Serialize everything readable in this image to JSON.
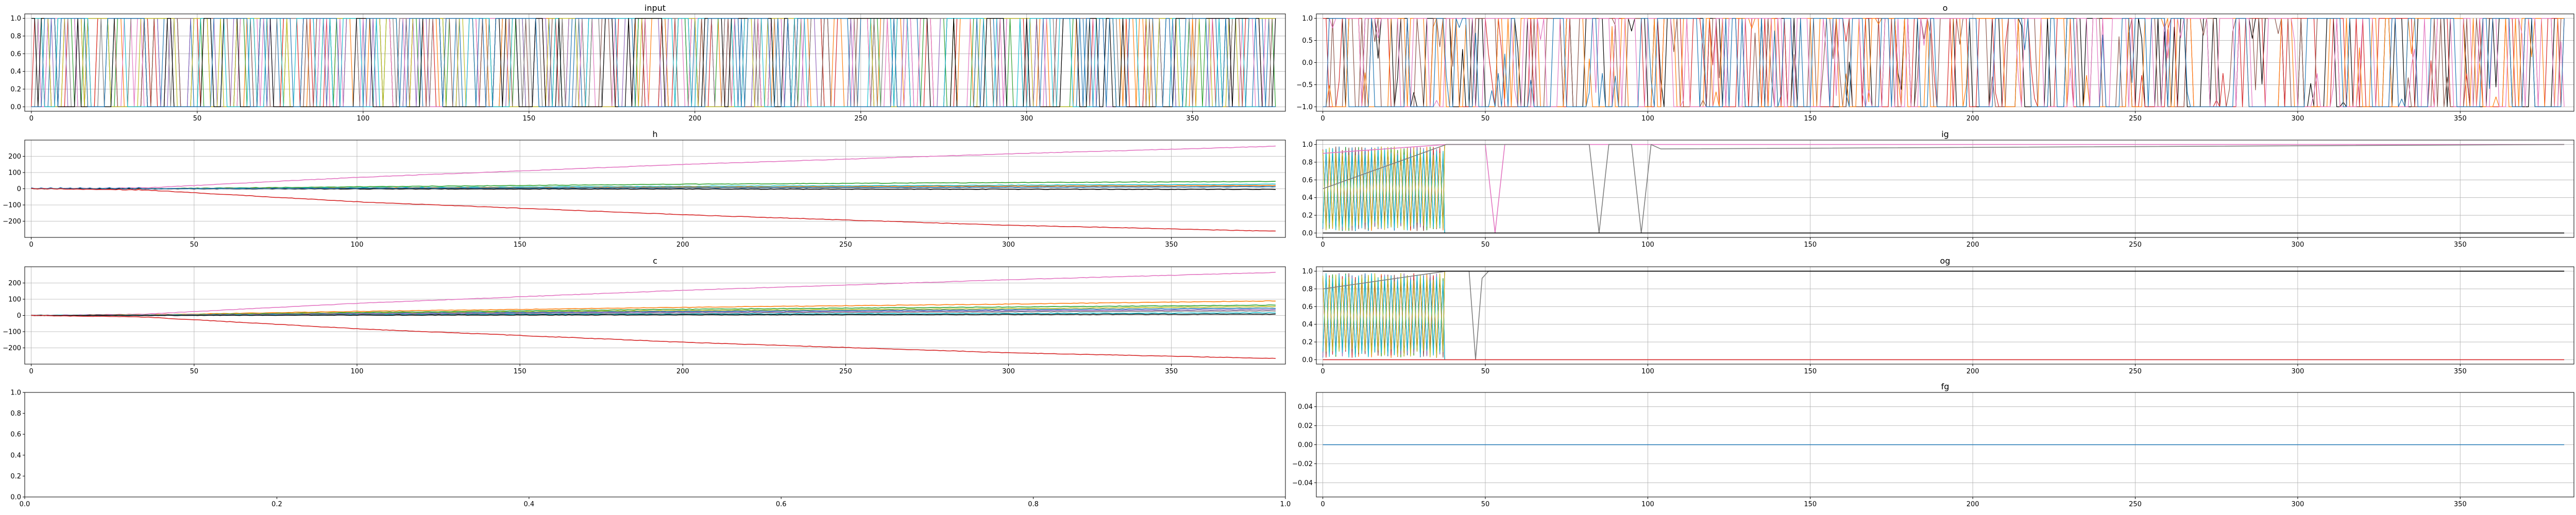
{
  "figure": {
    "background": "#ffffff"
  },
  "chart_data": [
    {
      "id": "input",
      "type": "line",
      "title": "input",
      "xlabel": "",
      "ylabel": "",
      "xlim": [
        -2,
        378
      ],
      "ylim": [
        -0.05,
        1.05
      ],
      "xticks": [
        0,
        50,
        100,
        150,
        200,
        250,
        300,
        350
      ],
      "yticks": [
        0.0,
        0.2,
        0.4,
        0.6,
        0.8,
        1.0
      ],
      "ytick_labels": [
        "0.0",
        "0.2",
        "0.4",
        "0.6",
        "0.8",
        "1.0"
      ],
      "grid": true,
      "series_pattern": "binary_switching",
      "series_count": 12,
      "x_range": [
        0,
        375
      ],
      "series_colors": [
        "#1f77b4",
        "#ff7f0e",
        "#2ca02c",
        "#d62728",
        "#9467bd",
        "#8c564b",
        "#e377c2",
        "#7f7f7f",
        "#bcbd22",
        "#17becf",
        "#000000",
        "#1f77b4"
      ]
    },
    {
      "id": "o",
      "type": "line",
      "title": "o",
      "xlabel": "",
      "ylabel": "",
      "xlim": [
        -2,
        385
      ],
      "ylim": [
        -1.1,
        1.1
      ],
      "xticks": [
        0,
        50,
        100,
        150,
        200,
        250,
        300,
        350
      ],
      "yticks": [
        -1.0,
        -0.5,
        0.0,
        0.5,
        1.0
      ],
      "ytick_labels": [
        "−1.0",
        "−0.5",
        "0.0",
        "0.5",
        "1.0"
      ],
      "grid": true,
      "series_pattern": "bipolar_switching",
      "series_count": 6,
      "x_range": [
        0,
        382
      ],
      "series_colors": [
        "#000000",
        "#d62728",
        "#8c564b",
        "#ff7f0e",
        "#e377c2",
        "#1f77b4"
      ]
    },
    {
      "id": "h",
      "type": "line",
      "title": "h",
      "xlabel": "",
      "ylabel": "",
      "xlim": [
        -2,
        385
      ],
      "ylim": [
        -300,
        300
      ],
      "xticks": [
        0,
        50,
        100,
        150,
        200,
        250,
        300,
        350
      ],
      "yticks": [
        -200,
        -100,
        0,
        100,
        200
      ],
      "ytick_labels": [
        "−200",
        "−100",
        "0",
        "100",
        "200"
      ],
      "grid": true,
      "series": [
        {
          "color": "#e377c2",
          "x": [
            0,
            35,
            100,
            200,
            300,
            382
          ],
          "y": [
            0,
            5,
            70,
            150,
            215,
            262
          ]
        },
        {
          "color": "#2ca02c",
          "x": [
            0,
            35,
            100,
            200,
            300,
            382
          ],
          "y": [
            0,
            0,
            12,
            28,
            38,
            45
          ]
        },
        {
          "color": "#17becf",
          "x": [
            0,
            35,
            100,
            200,
            300,
            382
          ],
          "y": [
            0,
            0,
            6,
            15,
            22,
            28
          ]
        },
        {
          "color": "#ff7f0e",
          "x": [
            0,
            35,
            100,
            200,
            300,
            382
          ],
          "y": [
            0,
            0,
            4,
            10,
            16,
            20
          ]
        },
        {
          "color": "#7f7f7f",
          "x": [
            0,
            35,
            100,
            200,
            300,
            382
          ],
          "y": [
            0,
            0,
            2,
            6,
            10,
            14
          ]
        },
        {
          "color": "#000000",
          "x": [
            0,
            35,
            100,
            200,
            300,
            382
          ],
          "y": [
            0,
            0,
            -1,
            -2,
            -3,
            -4
          ]
        },
        {
          "color": "#1f77b4",
          "x": [
            0,
            35,
            100,
            200,
            300,
            382
          ],
          "y": [
            0,
            0,
            3,
            6,
            9,
            12
          ]
        },
        {
          "color": "#d62728",
          "x": [
            0,
            35,
            100,
            200,
            300,
            382
          ],
          "y": [
            0,
            -8,
            -80,
            -160,
            -225,
            -262
          ]
        }
      ]
    },
    {
      "id": "ig",
      "type": "line",
      "title": "ig",
      "xlabel": "",
      "ylabel": "",
      "xlim": [
        -2,
        385
      ],
      "ylim": [
        -0.05,
        1.05
      ],
      "xticks": [
        0,
        50,
        100,
        150,
        200,
        250,
        300,
        350
      ],
      "yticks": [
        0.0,
        0.2,
        0.4,
        0.6,
        0.8,
        1.0
      ],
      "ytick_labels": [
        "0.0",
        "0.2",
        "0.4",
        "0.6",
        "0.8",
        "1.0"
      ],
      "grid": true,
      "series": [
        {
          "color": "#e377c2",
          "x": [
            0,
            38,
            50,
            53,
            56,
            59,
            382
          ],
          "y": [
            0.9,
            1.0,
            1.0,
            0.0,
            1.0,
            1.0,
            1.0
          ]
        },
        {
          "color": "#7f7f7f",
          "x": [
            0,
            38,
            82,
            85,
            88,
            95,
            98,
            101,
            104,
            382
          ],
          "y": [
            0.5,
            1.0,
            1.0,
            0.0,
            1.0,
            1.0,
            0.0,
            1.0,
            0.95,
            1.0
          ]
        },
        {
          "color": "#000000",
          "x": [
            0,
            38,
            40,
            382
          ],
          "y": [
            0.0,
            0.0,
            0.0,
            0.0
          ]
        }
      ],
      "oscillation": {
        "x_range": [
          0,
          37
        ],
        "colors": [
          "#1f77b4",
          "#ff7f0e",
          "#2ca02c",
          "#d62728",
          "#9467bd",
          "#8c564b",
          "#17becf",
          "#bcbd22"
        ]
      }
    },
    {
      "id": "c",
      "type": "line",
      "title": "c",
      "xlabel": "",
      "ylabel": "",
      "xlim": [
        -2,
        385
      ],
      "ylim": [
        -300,
        300
      ],
      "xticks": [
        0,
        50,
        100,
        150,
        200,
        250,
        300,
        350
      ],
      "yticks": [
        -200,
        -100,
        0,
        100,
        200
      ],
      "ytick_labels": [
        "−200",
        "−100",
        "0",
        "100",
        "200"
      ],
      "grid": true,
      "series": [
        {
          "color": "#e377c2",
          "x": [
            0,
            35,
            100,
            200,
            300,
            382
          ],
          "y": [
            0,
            8,
            75,
            155,
            220,
            265
          ]
        },
        {
          "color": "#ff7f0e",
          "x": [
            0,
            35,
            100,
            200,
            300,
            382
          ],
          "y": [
            0,
            4,
            25,
            50,
            70,
            90
          ]
        },
        {
          "color": "#2ca02c",
          "x": [
            0,
            35,
            100,
            200,
            300,
            382
          ],
          "y": [
            0,
            3,
            18,
            38,
            52,
            64
          ]
        },
        {
          "color": "#bcbd22",
          "x": [
            0,
            35,
            100,
            200,
            300,
            382
          ],
          "y": [
            0,
            3,
            14,
            30,
            42,
            55
          ]
        },
        {
          "color": "#1f77b4",
          "x": [
            0,
            35,
            100,
            200,
            300,
            382
          ],
          "y": [
            0,
            2,
            12,
            25,
            35,
            45
          ]
        },
        {
          "color": "#9467bd",
          "x": [
            0,
            35,
            100,
            200,
            300,
            382
          ],
          "y": [
            0,
            2,
            10,
            20,
            28,
            36
          ]
        },
        {
          "color": "#7f7f7f",
          "x": [
            0,
            35,
            100,
            200,
            300,
            382
          ],
          "y": [
            0,
            1,
            6,
            14,
            22,
            28
          ]
        },
        {
          "color": "#17becf",
          "x": [
            0,
            35,
            100,
            200,
            300,
            382
          ],
          "y": [
            0,
            1,
            4,
            8,
            12,
            16
          ]
        },
        {
          "color": "#000000",
          "x": [
            0,
            35,
            100,
            200,
            300,
            382
          ],
          "y": [
            0,
            0,
            2,
            4,
            6,
            8
          ]
        },
        {
          "color": "#d62728",
          "x": [
            0,
            35,
            100,
            200,
            300,
            382
          ],
          "y": [
            0,
            -10,
            -82,
            -165,
            -230,
            -265
          ]
        }
      ]
    },
    {
      "id": "og",
      "type": "line",
      "title": "og",
      "xlabel": "",
      "ylabel": "",
      "xlim": [
        -2,
        385
      ],
      "ylim": [
        -0.05,
        1.05
      ],
      "xticks": [
        0,
        50,
        100,
        150,
        200,
        250,
        300,
        350
      ],
      "yticks": [
        0.0,
        0.2,
        0.4,
        0.6,
        0.8,
        1.0
      ],
      "ytick_labels": [
        "0.0",
        "0.2",
        "0.4",
        "0.6",
        "0.8",
        "1.0"
      ],
      "grid": true,
      "series": [
        {
          "color": "#7f7f7f",
          "x": [
            0,
            38,
            45,
            47,
            49,
            51,
            382
          ],
          "y": [
            0.8,
            1.0,
            1.0,
            0.0,
            0.92,
            1.0,
            1.0
          ]
        },
        {
          "color": "#000000",
          "x": [
            0,
            38,
            382
          ],
          "y": [
            1.0,
            1.0,
            1.0
          ]
        },
        {
          "color": "#d62728",
          "x": [
            0,
            38,
            382
          ],
          "y": [
            0.0,
            0.0,
            0.0
          ]
        }
      ],
      "oscillation": {
        "x_range": [
          0,
          37
        ],
        "colors": [
          "#1f77b4",
          "#ff7f0e",
          "#2ca02c",
          "#d62728",
          "#9467bd",
          "#8c564b",
          "#17becf",
          "#bcbd22"
        ]
      }
    },
    {
      "id": "empty",
      "type": "line",
      "title": "",
      "xlabel": "",
      "ylabel": "",
      "xlim": [
        0.0,
        1.0
      ],
      "ylim": [
        0.0,
        1.0
      ],
      "xticks": [
        0.0,
        0.2,
        0.4,
        0.6,
        0.8,
        1.0
      ],
      "xtick_labels": [
        "0.0",
        "0.2",
        "0.4",
        "0.6",
        "0.8",
        "1.0"
      ],
      "yticks": [
        0.0,
        0.2,
        0.4,
        0.6,
        0.8,
        1.0
      ],
      "ytick_labels": [
        "0.0",
        "0.2",
        "0.4",
        "0.6",
        "0.8",
        "1.0"
      ],
      "grid": false,
      "series": []
    },
    {
      "id": "fg",
      "type": "line",
      "title": "fg",
      "xlabel": "",
      "ylabel": "",
      "xlim": [
        -2,
        385
      ],
      "ylim": [
        -0.055,
        0.055
      ],
      "xticks": [
        0,
        50,
        100,
        150,
        200,
        250,
        300,
        350
      ],
      "yticks": [
        -0.04,
        -0.02,
        0.0,
        0.02,
        0.04
      ],
      "ytick_labels": [
        "−0.04",
        "−0.02",
        "0.00",
        "0.02",
        "0.04"
      ],
      "grid": true,
      "series": [
        {
          "color": "#1f77b4",
          "x": [
            0,
            382
          ],
          "y": [
            0.0,
            0.0
          ]
        }
      ]
    }
  ]
}
